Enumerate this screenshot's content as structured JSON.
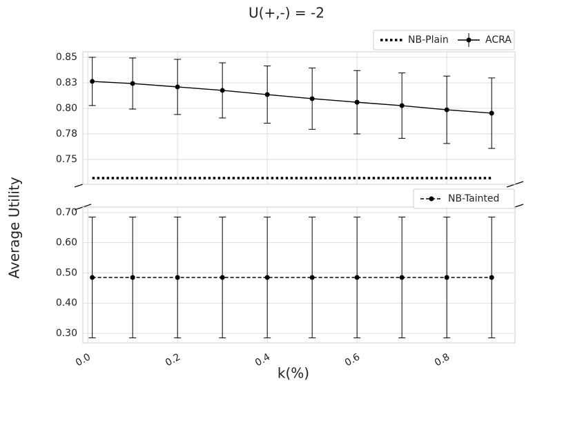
{
  "chart_data": [
    {
      "type": "line",
      "title": "U(+,-) = -2",
      "ylabel": "Average Utility",
      "x": [
        0.01,
        0.1,
        0.2,
        0.3,
        0.4,
        0.5,
        0.6,
        0.7,
        0.8,
        0.9
      ],
      "xlim": [
        -0.011,
        0.952
      ],
      "ylim": [
        0.7257,
        0.8554
      ],
      "yticks": [
        {
          "value": 0.75,
          "label": "0.75"
        },
        {
          "value": 0.775,
          "label": "0.78"
        },
        {
          "value": 0.8,
          "label": "0.80"
        },
        {
          "value": 0.825,
          "label": "0.83"
        },
        {
          "value": 0.85,
          "label": "0.85"
        }
      ],
      "grid": true,
      "legend": "upper right",
      "series": [
        {
          "name": "NB-Plain",
          "color": "#000000",
          "linestyle": "dotted",
          "marker": false,
          "values": [
            0.7318,
            0.7318,
            0.7318,
            0.7318,
            0.7318,
            0.7318,
            0.7318,
            0.7318,
            0.7318,
            0.7318
          ]
        },
        {
          "name": "ACRA",
          "color": "#000000",
          "linestyle": "solid",
          "marker": true,
          "values": [
            0.8264,
            0.8243,
            0.821,
            0.8176,
            0.8135,
            0.8095,
            0.806,
            0.8027,
            0.7986,
            0.7953
          ],
          "errors": [
            0.0236,
            0.025,
            0.027,
            0.027,
            0.028,
            0.03,
            0.031,
            0.032,
            0.033,
            0.0345
          ]
        }
      ]
    },
    {
      "type": "line",
      "xlabel": "k(%)",
      "x": [
        0.01,
        0.1,
        0.2,
        0.3,
        0.4,
        0.5,
        0.6,
        0.7,
        0.8,
        0.9
      ],
      "xlim": [
        -0.011,
        0.952
      ],
      "ylim": [
        0.268,
        0.718
      ],
      "xticks": [
        {
          "value": 0,
          "label": "0.0"
        },
        0.2,
        0.4,
        0.6,
        0.8
      ],
      "yticks": [
        {
          "value": 0.3,
          "label": "0.30"
        },
        {
          "value": 0.4,
          "label": "0.40"
        },
        {
          "value": 0.5,
          "label": "0.50"
        },
        {
          "value": 0.6,
          "label": "0.60"
        },
        {
          "value": 0.7,
          "label": "0.70"
        }
      ],
      "grid": true,
      "legend": "upper right",
      "series": [
        {
          "name": "NB-Tainted",
          "color": "#000000",
          "linestyle": "dashed",
          "marker": true,
          "values": [
            0.485,
            0.485,
            0.485,
            0.485,
            0.485,
            0.485,
            0.485,
            0.485,
            0.485,
            0.485
          ],
          "errors": [
            0.2,
            0.2,
            0.2,
            0.2,
            0.2,
            0.2,
            0.2,
            0.2,
            0.2,
            0.2
          ]
        }
      ]
    }
  ]
}
